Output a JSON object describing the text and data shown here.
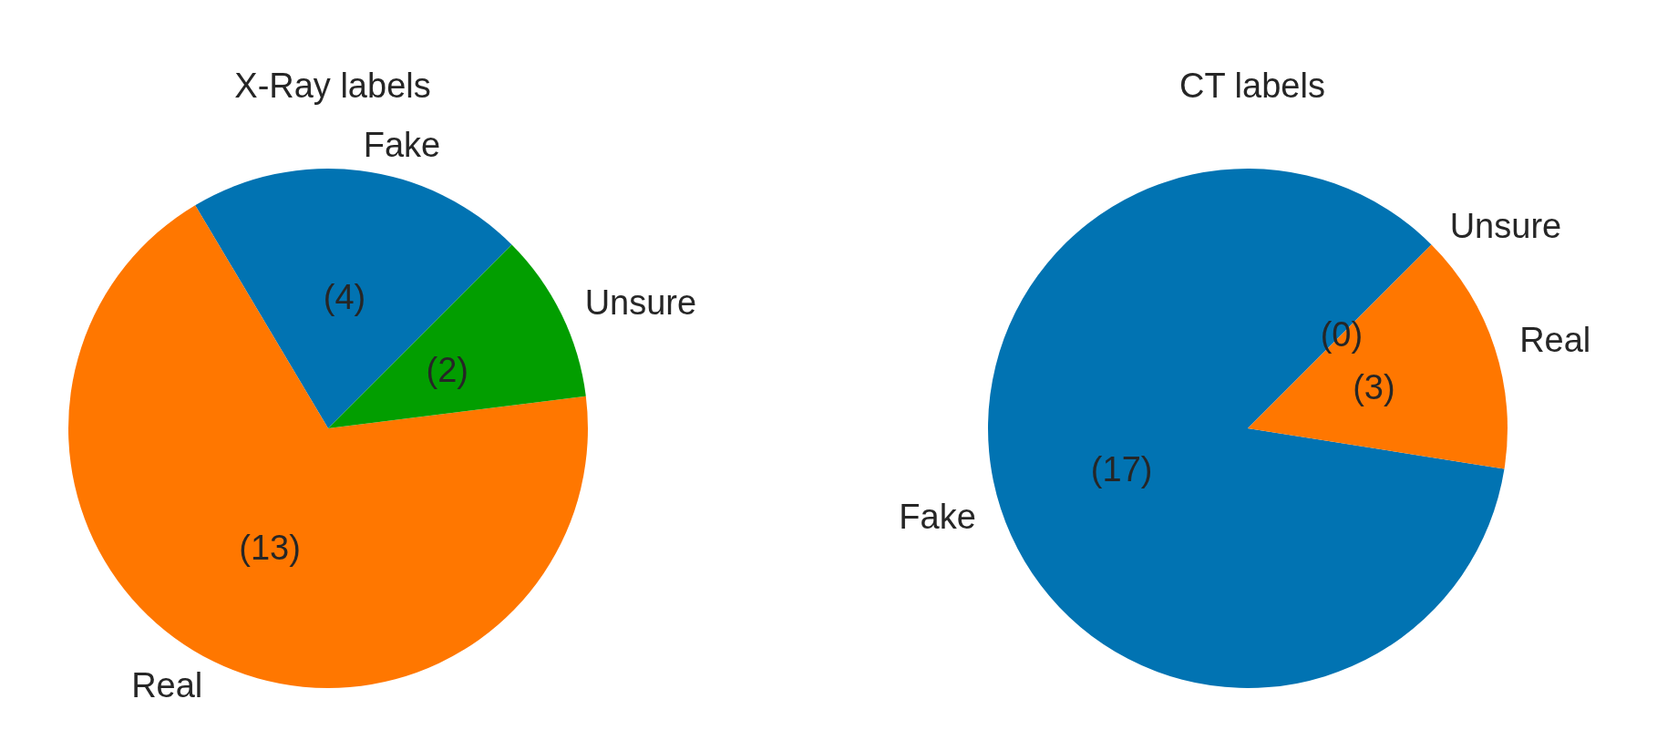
{
  "chart_data": [
    {
      "type": "pie",
      "title": "X-Ray labels",
      "categories": [
        "Fake",
        "Real",
        "Unsure"
      ],
      "values": [
        4,
        13,
        2
      ],
      "colors": [
        "#0173b2",
        "#ff7700",
        "#029e00"
      ],
      "value_labels": [
        "(4)",
        "(13)",
        "(2)"
      ]
    },
    {
      "type": "pie",
      "title": "CT labels",
      "categories": [
        "Fake",
        "Real",
        "Unsure"
      ],
      "values": [
        17,
        3,
        0
      ],
      "colors": [
        "#0173b2",
        "#ff7700",
        "#029e00"
      ],
      "value_labels": [
        "(17)",
        "(3)",
        "(0)"
      ]
    }
  ]
}
